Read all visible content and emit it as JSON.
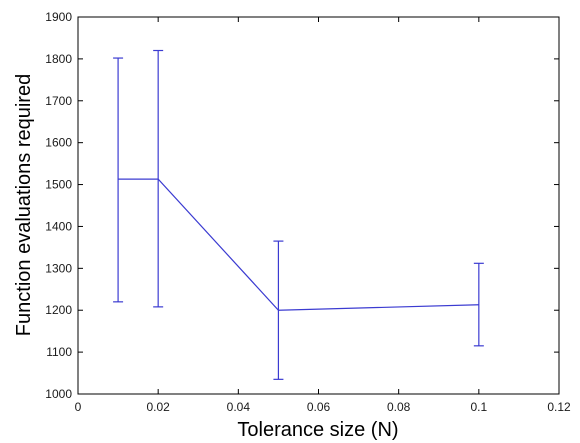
{
  "chart_data": {
    "type": "line",
    "title": "",
    "xlabel": "Tolerance size (N)",
    "ylabel": "Function evaluations required",
    "xlim": [
      0,
      0.12
    ],
    "ylim": [
      1000,
      1900
    ],
    "x_ticks": [
      {
        "value": 0,
        "label": "0"
      },
      {
        "value": 0.02,
        "label": "0.02"
      },
      {
        "value": 0.04,
        "label": "0.04"
      },
      {
        "value": 0.06,
        "label": "0.06"
      },
      {
        "value": 0.08,
        "label": "0.08"
      },
      {
        "value": 0.1,
        "label": "0.1"
      },
      {
        "value": 0.12,
        "label": "0.12"
      }
    ],
    "y_ticks": [
      {
        "value": 1000,
        "label": "1000"
      },
      {
        "value": 1100,
        "label": "1100"
      },
      {
        "value": 1200,
        "label": "1200"
      },
      {
        "value": 1300,
        "label": "1300"
      },
      {
        "value": 1400,
        "label": "1400"
      },
      {
        "value": 1500,
        "label": "1500"
      },
      {
        "value": 1600,
        "label": "1600"
      },
      {
        "value": 1700,
        "label": "1700"
      },
      {
        "value": 1800,
        "label": "1800"
      },
      {
        "value": 1900,
        "label": "1900"
      }
    ],
    "grid": false,
    "legend": "none",
    "series": [
      {
        "color": "#3b3bd1",
        "points": [
          {
            "x": 0.01,
            "y": 1513,
            "y_low": 1220,
            "y_high": 1802
          },
          {
            "x": 0.02,
            "y": 1513,
            "y_low": 1208,
            "y_high": 1820
          },
          {
            "x": 0.05,
            "y": 1200,
            "y_low": 1035,
            "y_high": 1365
          },
          {
            "x": 0.1,
            "y": 1213,
            "y_low": 1115,
            "y_high": 1312
          }
        ]
      }
    ]
  }
}
